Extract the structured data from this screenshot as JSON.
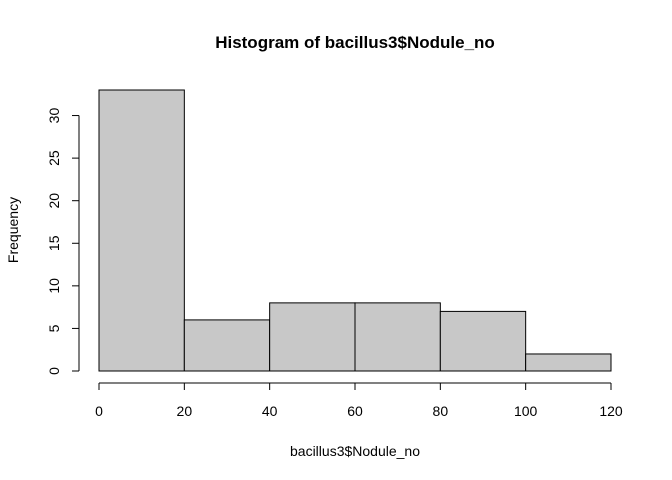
{
  "chart_data": {
    "type": "bar",
    "title": "Histogram of bacillus3$Nodule_no",
    "xlabel": "bacillus3$Nodule_no",
    "ylabel": "Frequency",
    "bins": [
      {
        "from": 0,
        "to": 20,
        "count": 33
      },
      {
        "from": 20,
        "to": 40,
        "count": 6
      },
      {
        "from": 40,
        "to": 60,
        "count": 8
      },
      {
        "from": 60,
        "to": 80,
        "count": 8
      },
      {
        "from": 80,
        "to": 100,
        "count": 7
      },
      {
        "from": 100,
        "to": 120,
        "count": 2
      }
    ],
    "xlim": [
      0,
      120
    ],
    "ylim": [
      0,
      33
    ],
    "x_ticks": [
      "0",
      "20",
      "40",
      "60",
      "80",
      "100",
      "120"
    ],
    "y_ticks": [
      "0",
      "5",
      "10",
      "15",
      "20",
      "25",
      "30"
    ],
    "colors": {
      "bar_fill": "#c8c8c8",
      "bar_stroke": "#000000"
    },
    "grid": false,
    "legend": "none"
  }
}
